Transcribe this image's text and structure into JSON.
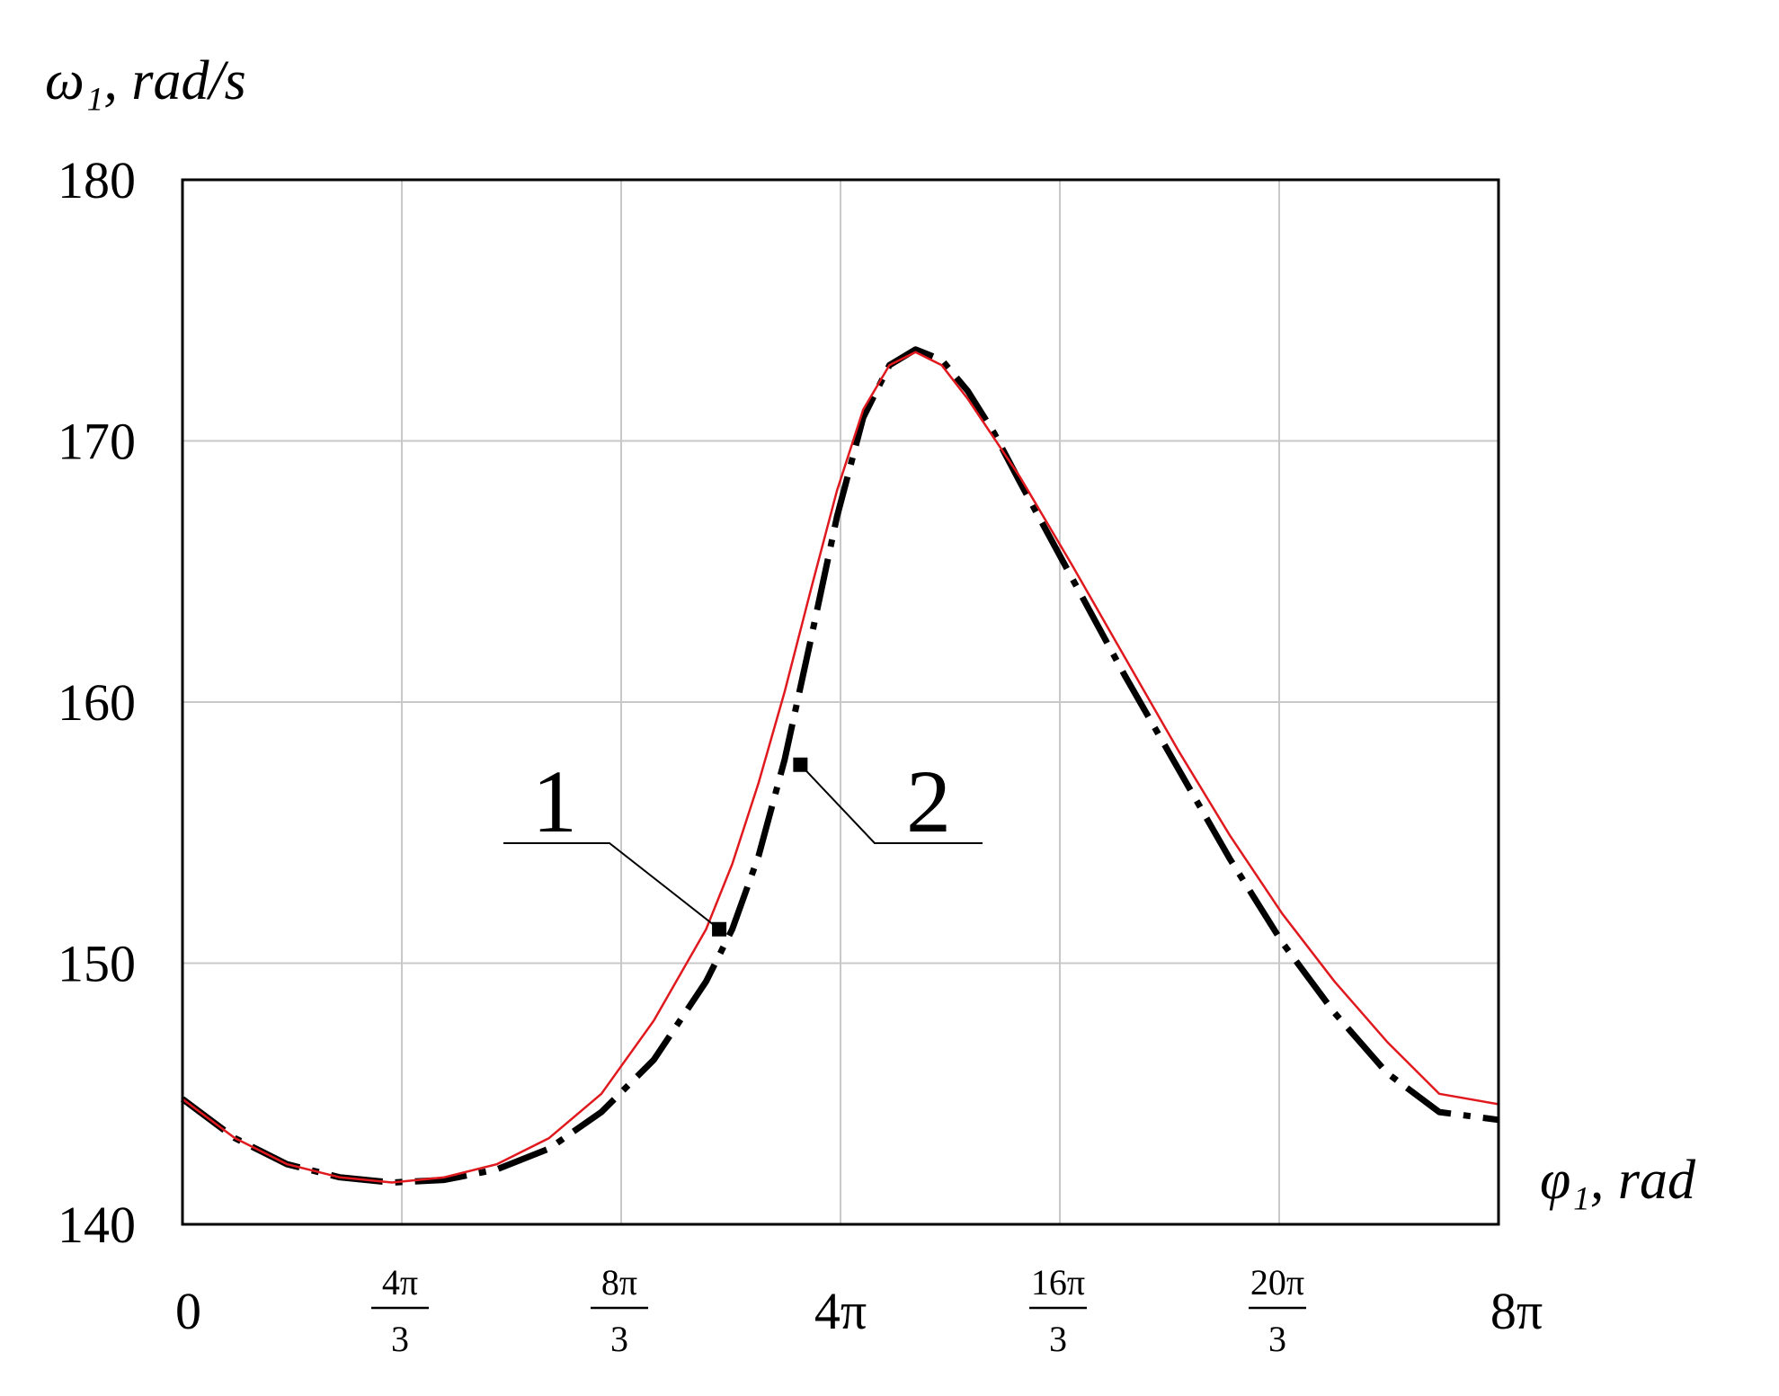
{
  "chart_data": {
    "type": "line",
    "title": "",
    "xlabel": "φ₁, rad",
    "ylabel": "ω₁, rad/s",
    "xlim": [
      0,
      25.1327
    ],
    "ylim": [
      140,
      180
    ],
    "x_ticks": [
      {
        "value": 0,
        "label": "0"
      },
      {
        "value": 4.18879,
        "num": "4π",
        "den": "3"
      },
      {
        "value": 8.37758,
        "num": "8π",
        "den": "3"
      },
      {
        "value": 12.56637,
        "label": "4π"
      },
      {
        "value": 16.75516,
        "num": "16π",
        "den": "3"
      },
      {
        "value": 20.94395,
        "num": "20π",
        "den": "3"
      },
      {
        "value": 25.13274,
        "label": "8π"
      }
    ],
    "y_ticks": [
      140,
      150,
      160,
      170,
      180
    ],
    "grid": true,
    "colors": {
      "series_1": "#e0191e",
      "series_2": "#000000",
      "grid": "#c8c8c8",
      "frame": "#000000"
    },
    "series": [
      {
        "name": "1",
        "style": "solid",
        "x": [
          0,
          1.0,
          2.0,
          3.0,
          4.0,
          5.0,
          6.0,
          7.0,
          8.0,
          9.0,
          10.0,
          10.5,
          11.0,
          11.5,
          12.0,
          12.5,
          13.0,
          13.5,
          14.0,
          14.5,
          15.0,
          15.5,
          16.0,
          17.0,
          18.0,
          19.0,
          20.0,
          21.0,
          22.0,
          23.0,
          24.0,
          25.1327
        ],
        "y": [
          144.8,
          143.3,
          142.3,
          141.8,
          141.6,
          141.8,
          142.3,
          143.3,
          145.0,
          147.8,
          151.3,
          153.8,
          156.9,
          160.4,
          164.3,
          168.1,
          171.2,
          172.9,
          173.4,
          172.9,
          171.6,
          170.1,
          168.6,
          165.2,
          161.7,
          158.2,
          154.9,
          151.9,
          149.3,
          147.0,
          145.0,
          144.6
        ]
      },
      {
        "name": "2",
        "style": "dash-dot",
        "x": [
          0,
          1.0,
          2.0,
          3.0,
          4.0,
          5.0,
          6.0,
          7.0,
          8.0,
          9.0,
          10.0,
          10.5,
          11.0,
          11.5,
          12.0,
          12.5,
          13.0,
          13.5,
          14.0,
          14.5,
          15.0,
          15.5,
          16.0,
          17.0,
          18.0,
          19.0,
          20.0,
          21.0,
          22.0,
          23.0,
          24.0,
          25.1327
        ],
        "y": [
          144.8,
          143.3,
          142.3,
          141.8,
          141.6,
          141.7,
          142.1,
          142.9,
          144.3,
          146.3,
          149.3,
          151.3,
          154.1,
          157.8,
          162.4,
          167.1,
          170.9,
          172.9,
          173.5,
          173.1,
          171.9,
          170.3,
          168.4,
          164.7,
          161.0,
          157.5,
          154.0,
          150.8,
          148.1,
          145.8,
          144.3,
          144.0
        ]
      }
    ],
    "callouts": [
      {
        "label": "1",
        "series": "1",
        "x": 10.25,
        "y": 151.3
      },
      {
        "label": "2",
        "series": "2",
        "x": 11.8,
        "y": 157.6
      }
    ]
  }
}
